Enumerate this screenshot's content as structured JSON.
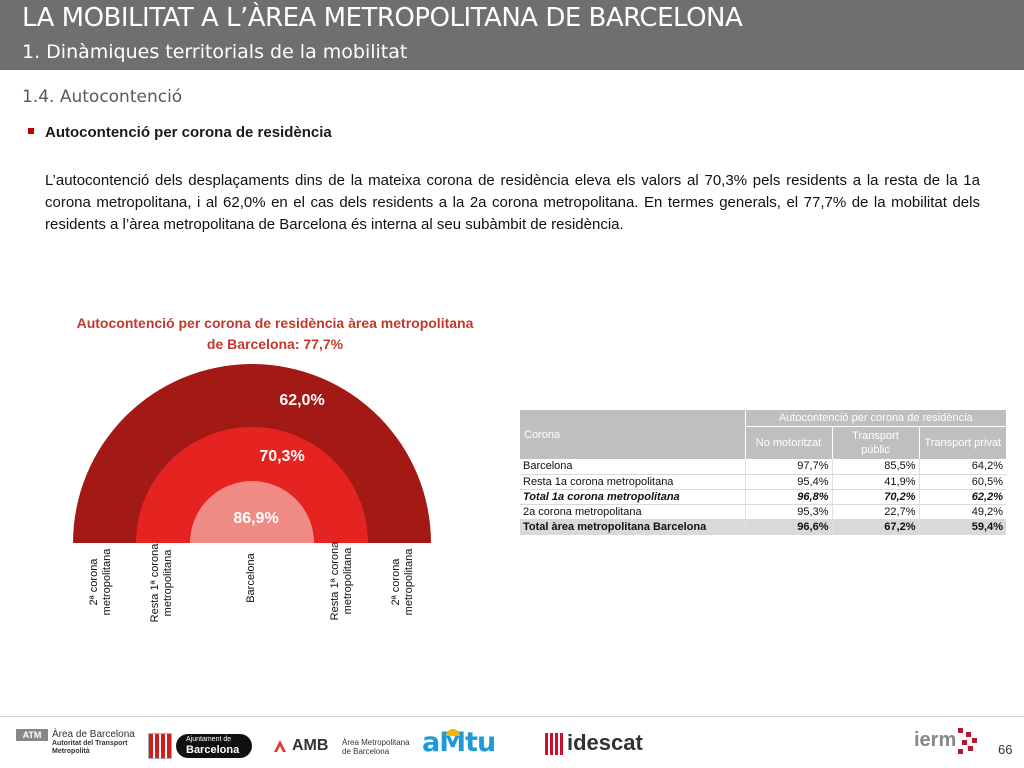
{
  "header": {
    "title": "LA MOBILITAT A L’ÀREA METROPOLITANA DE BARCELONA",
    "subtitle": "1. Dinàmiques territorials de la mobilitat"
  },
  "section": {
    "title": "1.4. Autocontenció"
  },
  "bullet": {
    "title": "Autocontenció per corona de residència"
  },
  "paragraph": "L’autocontenció dels desplaçaments dins de la mateixa corona de residència eleva els valors al 70,3% pels residents a la resta de la 1a corona metropolitana, i al 62,0% en el cas dels residents a la 2a corona metropolitana. En termes generals, el 77,7% de la mobilitat dels residents a l’àrea metropolitana de Barcelona és interna al seu subàmbit de residència.",
  "chart": {
    "title_line1": "Autocontenció per corona de residència àrea metropolitana",
    "title_line2": "de Barcelona: 77,7%",
    "labels": {
      "outer": "62,0%",
      "middle": "70,3%",
      "inner": "86,9%"
    },
    "axis_labels": [
      "2ª corona metropolitana",
      "Resta 1ª corona metropolitana",
      "Barcelona",
      "Resta 1ª corona metropolitana",
      "2ª corona metropolitana"
    ],
    "colors": {
      "outer": "#a31915",
      "middle": "#e52421",
      "inner": "#f08a85"
    }
  },
  "chart_data": {
    "type": "table",
    "title": "Autocontenció per corona de residència àrea metropolitana de Barcelona: 77,7%",
    "series": [
      {
        "name": "2ª corona metropolitana",
        "values": [
          62.0
        ]
      },
      {
        "name": "Resta 1ª corona metropolitana",
        "values": [
          70.3
        ]
      },
      {
        "name": "Barcelona",
        "values": [
          86.9
        ]
      }
    ]
  },
  "table": {
    "col_corona": "Corona",
    "group_header": "Autocontenció per corona de residència",
    "sub_headers": [
      "No motoritzat",
      "Transport públic",
      "Transport privat"
    ],
    "rows": [
      {
        "name": "Barcelona",
        "values": [
          "97,7%",
          "85,5%",
          "64,2%"
        ]
      },
      {
        "name": "Resta 1a corona metropolitana",
        "values": [
          "95,4%",
          "41,9%",
          "60,5%"
        ]
      },
      {
        "name": "Total 1a corona metropolitana",
        "values": [
          "96,8%",
          "70,2%",
          "62,2%"
        ]
      },
      {
        "name": "2a corona metropolitana",
        "values": [
          "95,3%",
          "22,7%",
          "49,2%"
        ]
      },
      {
        "name": "Total àrea metropolitana Barcelona",
        "values": [
          "96,6%",
          "67,2%",
          "59,4%"
        ]
      }
    ]
  },
  "footer": {
    "atm_badge": "ATM",
    "atm_line1": "Àrea de Barcelona",
    "atm_line2": "Autoritat del Transport",
    "atm_line3": "Metropolità",
    "ajuntament_line1": "Ajuntament de",
    "ajuntament_line2": "Barcelona",
    "amb_text": "AMB",
    "amb_line1": "Àrea Metropolitana",
    "amb_line2": "de Barcelona",
    "amtu_text": "aMtu",
    "idescat_text": "idescat",
    "ierm_text": "ierm",
    "page_number": "66"
  }
}
